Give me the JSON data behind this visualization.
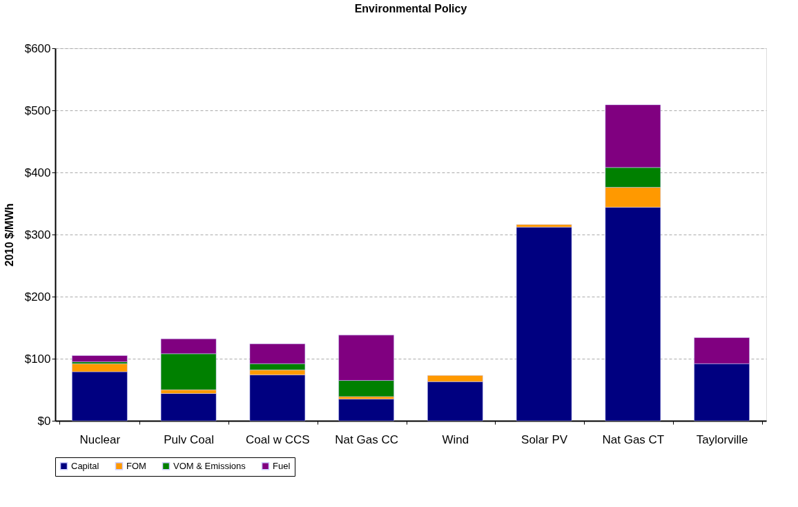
{
  "chart_data": {
    "type": "bar",
    "title": "Environmental Policy",
    "ylabel": "2010 $/MWh",
    "categories": [
      "Nuclear",
      "Pulv Coal",
      "Coal w CCS",
      "Nat Gas CC",
      "Wind",
      "Solar PV",
      "Nat Gas CT",
      "Taylorville"
    ],
    "stacked": true,
    "series": [
      {
        "name": "Capital",
        "color": "#000080",
        "values": [
          79,
          44,
          74,
          35,
          63,
          312,
          344,
          92
        ]
      },
      {
        "name": "FOM",
        "color": "#ff9900",
        "values": [
          13,
          6,
          8,
          4,
          10,
          4,
          32,
          null
        ]
      },
      {
        "name": "VOM & Emissions",
        "color": "#008000",
        "values": [
          3,
          58,
          10,
          26,
          null,
          null,
          32,
          null
        ]
      },
      {
        "name": "Fuel",
        "color": "#800080",
        "values": [
          10,
          24,
          32,
          73,
          null,
          null,
          101,
          42
        ]
      }
    ],
    "ylim": [
      0,
      600
    ],
    "yticks": [
      {
        "value": 0,
        "label": "$0"
      },
      {
        "value": 100,
        "label": "$100"
      },
      {
        "value": 200,
        "label": "$200"
      },
      {
        "value": 300,
        "label": "$300"
      },
      {
        "value": 400,
        "label": "$400"
      },
      {
        "value": 500,
        "label": "$500"
      },
      {
        "value": 600,
        "label": "$600"
      }
    ],
    "grid": "y",
    "legend": "bottom"
  }
}
